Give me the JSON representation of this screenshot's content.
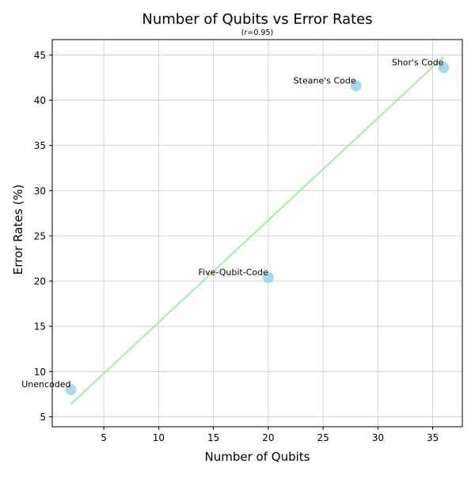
{
  "chart_data": {
    "type": "scatter",
    "title": "Number of Qubits vs Error Rates",
    "subtitle": "(r=0.95)",
    "xlabel": "Number of Qubits",
    "ylabel": "Error Rates (%)",
    "xlim": [
      0.3,
      37.7
    ],
    "ylim": [
      3.9,
      46.7
    ],
    "xticks": [
      5,
      10,
      15,
      20,
      25,
      30,
      35
    ],
    "yticks": [
      5,
      10,
      15,
      20,
      25,
      30,
      35,
      40,
      45
    ],
    "grid": true,
    "points": [
      {
        "label": "Unencoded",
        "x": 2,
        "y": 8.0
      },
      {
        "label": "Five-Qubit-Code",
        "x": 20,
        "y": 20.4
      },
      {
        "label": "Steane's Code",
        "x": 28,
        "y": 41.6
      },
      {
        "label": "Shor's Code",
        "x": 36,
        "y": 43.6
      }
    ],
    "trendline": {
      "x": [
        2,
        36
      ],
      "y": [
        6.4,
        44.8
      ]
    },
    "colors": {
      "point_fill": "#87ceeb",
      "trendline": "#90ee90",
      "grid": "#cccccc"
    }
  }
}
